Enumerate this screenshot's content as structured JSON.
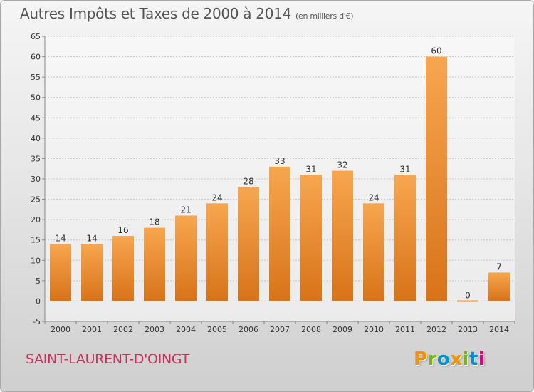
{
  "header": {
    "title": "Autres Impôts et Taxes de 2000 à 2014",
    "unit": "(en milliers d'€)"
  },
  "footer": {
    "commune": "SAINT-LAURENT-D'OINGT",
    "logo_text": "Proxiti",
    "logo_letters": [
      {
        "char": "P",
        "color": "#f39200"
      },
      {
        "char": "r",
        "color": "#7ab51d"
      },
      {
        "char": "o",
        "color": "#0090d0"
      },
      {
        "char": "x",
        "color": "#f39200"
      },
      {
        "char": "i",
        "color": "#7ab51d"
      },
      {
        "char": "t",
        "color": "#0090d0"
      },
      {
        "char": "i",
        "color": "#e2007a"
      }
    ]
  },
  "colors": {
    "bar_light": "#f7a650",
    "bar_dark": "#d87318",
    "commune": "#c7305f",
    "axis_text": "#333333",
    "grid": "#c6c6c6"
  },
  "chart_data": {
    "type": "bar",
    "title": "Autres Impôts et Taxes de 2000 à 2014",
    "subtitle": "(en milliers d'€)",
    "categories": [
      "2000",
      "2001",
      "2002",
      "2003",
      "2004",
      "2005",
      "2006",
      "2007",
      "2008",
      "2009",
      "2010",
      "2011",
      "2012",
      "2013",
      "2014"
    ],
    "values": [
      14,
      14,
      16,
      18,
      21,
      24,
      28,
      33,
      31,
      32,
      24,
      31,
      60,
      0,
      7
    ],
    "y_ticks": [
      -5,
      0,
      5,
      10,
      15,
      20,
      25,
      30,
      35,
      40,
      45,
      50,
      55,
      60,
      65
    ],
    "ylim": [
      -5,
      65
    ],
    "grid": "horizontal",
    "xlabel": "",
    "ylabel": ""
  }
}
